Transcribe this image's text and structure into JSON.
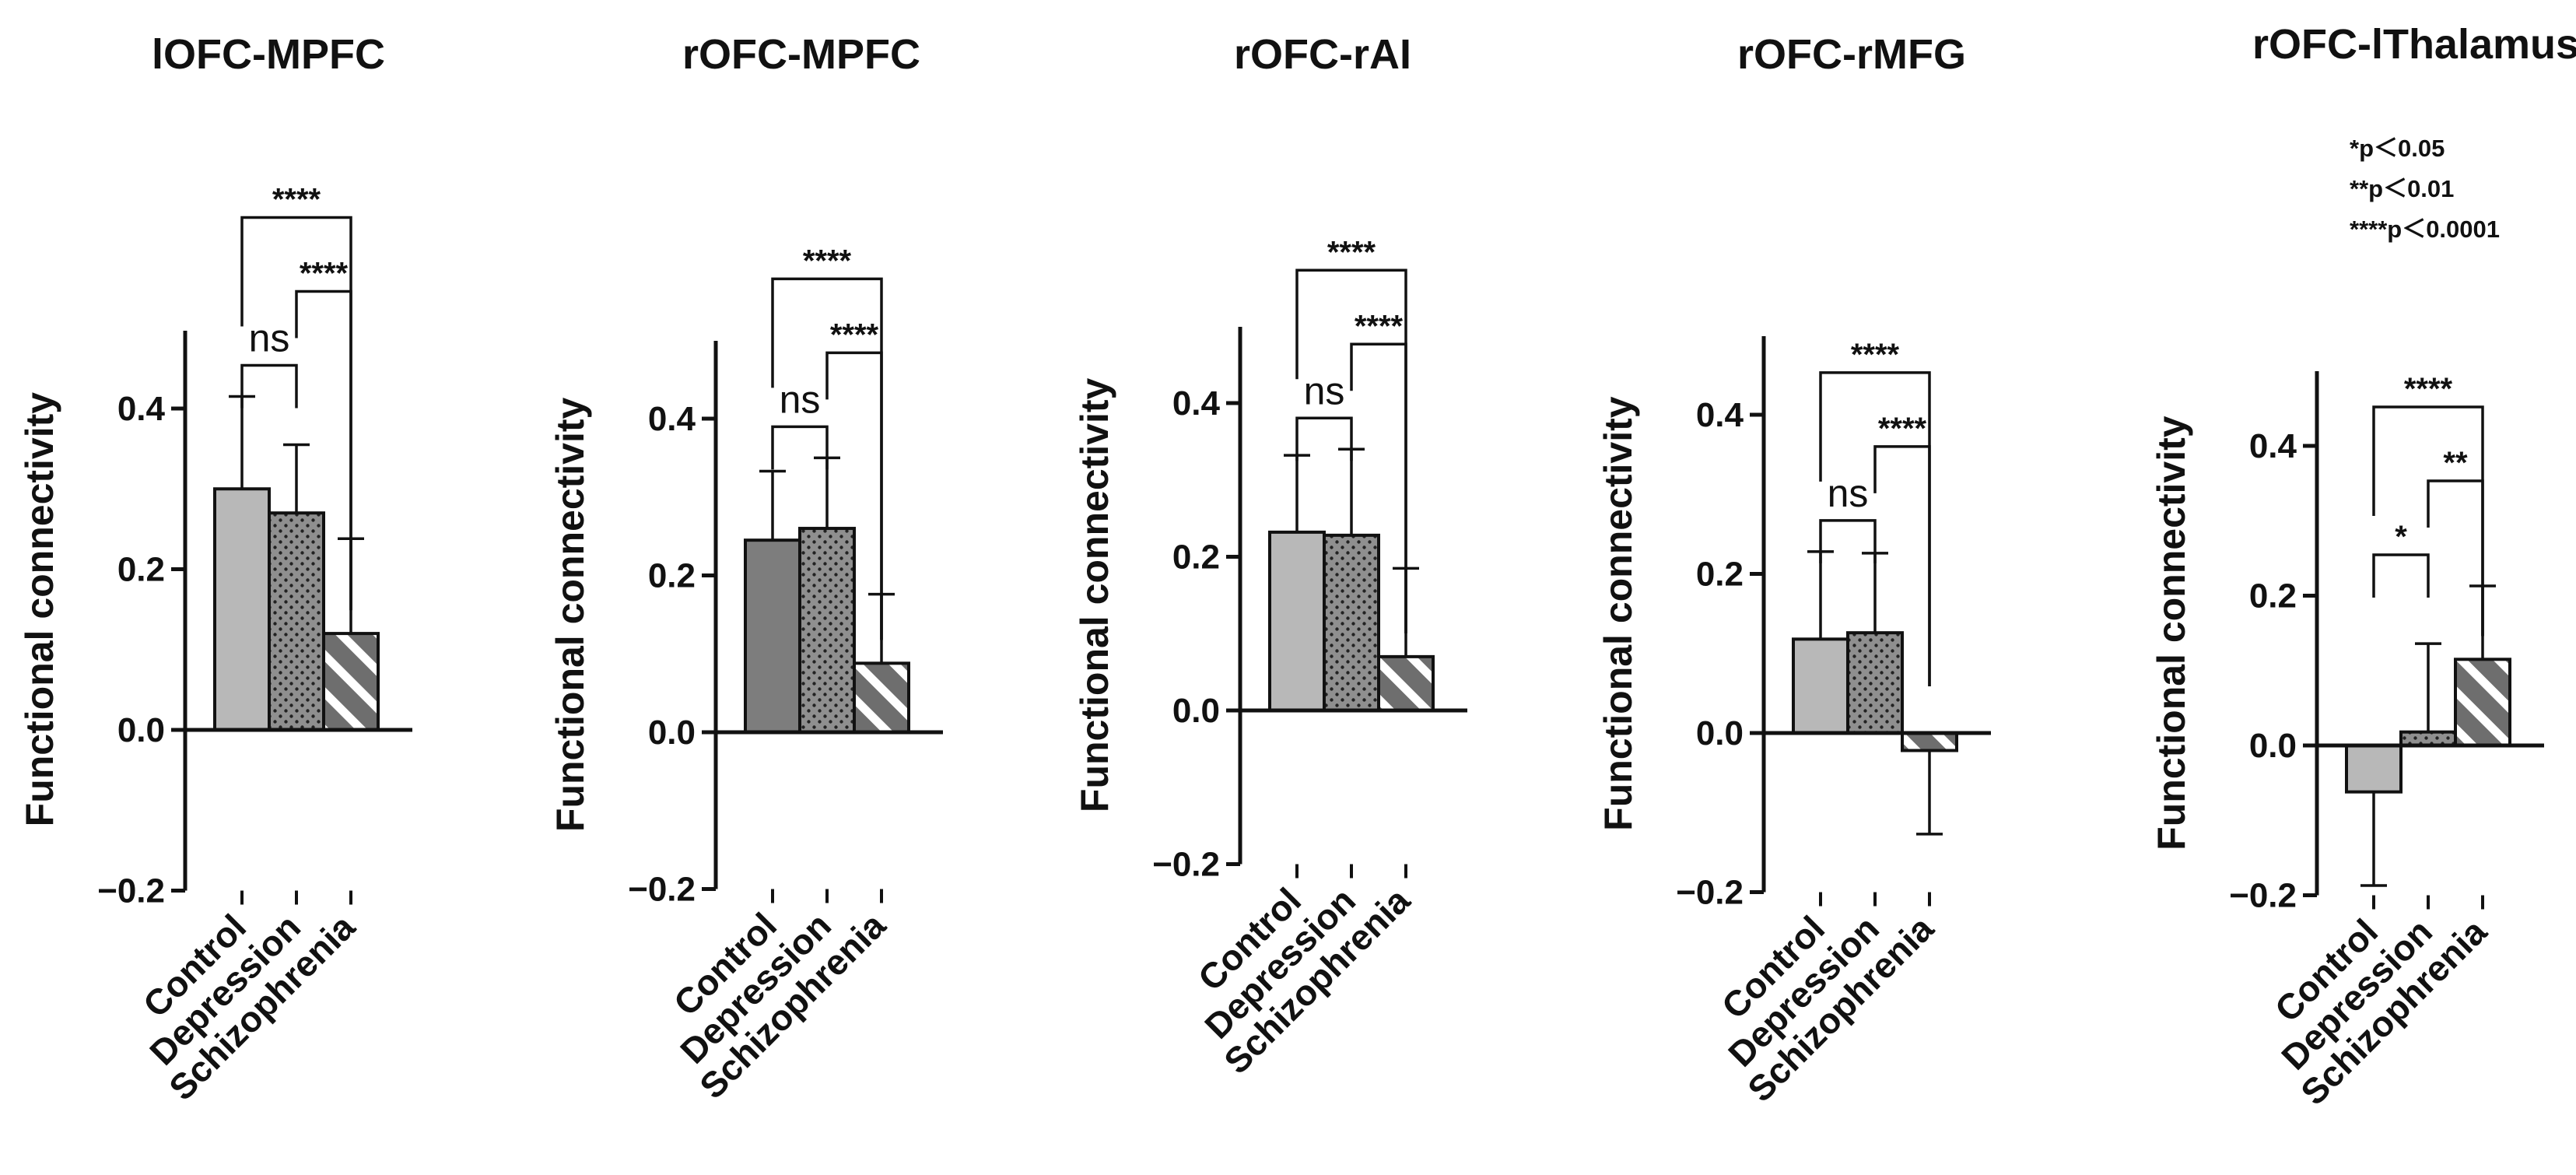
{
  "ylabel": "Functional connectivity",
  "groups": [
    "Control",
    "Depression",
    "Schizophrenia"
  ],
  "significance_legend": [
    "*p＜0.05",
    "**p＜0.01",
    "****p＜0.0001"
  ],
  "colors": {
    "control_fill": "#b8b8b8",
    "control_fill_alt": "#7d7d7d",
    "depression_fill": "#8f8f8f",
    "schizophrenia_fill": "#6e6e6e",
    "stroke": "#111111"
  },
  "chart_data": [
    {
      "type": "bar",
      "title": "lOFC-MPFC",
      "categories": [
        "Control",
        "Depression",
        "Schizophrenia"
      ],
      "values": [
        0.3,
        0.27,
        0.12
      ],
      "errors": [
        0.115,
        0.085,
        0.118
      ],
      "ylim": [
        -0.2,
        0.5
      ],
      "yticks": [
        -0.2,
        0.0,
        0.2,
        0.4
      ],
      "tick_labels": [
        "−0.2",
        "0.0",
        "0.2",
        "0.4"
      ],
      "comparisons": [
        {
          "from": 0,
          "to": 1,
          "label": "ns",
          "level": 1
        },
        {
          "from": 1,
          "to": 2,
          "label": "****",
          "level": 2
        },
        {
          "from": 0,
          "to": 2,
          "label": "****",
          "level": 3
        }
      ]
    },
    {
      "type": "bar",
      "title": "rOFC-MPFC",
      "categories": [
        "Control",
        "Depression",
        "Schizophrenia"
      ],
      "values": [
        0.245,
        0.26,
        0.088
      ],
      "errors": [
        0.088,
        0.09,
        0.088
      ],
      "ylim": [
        -0.2,
        0.5
      ],
      "yticks": [
        -0.2,
        0.0,
        0.2,
        0.4
      ],
      "tick_labels": [
        "−0.2",
        "0.0",
        "0.2",
        "0.4"
      ],
      "control_dark": true,
      "comparisons": [
        {
          "from": 0,
          "to": 1,
          "label": "ns",
          "level": 1
        },
        {
          "from": 1,
          "to": 2,
          "label": "****",
          "level": 2
        },
        {
          "from": 0,
          "to": 2,
          "label": "****",
          "level": 3
        }
      ]
    },
    {
      "type": "bar",
      "title": "rOFC-rAI",
      "categories": [
        "Control",
        "Depression",
        "Schizophrenia"
      ],
      "values": [
        0.232,
        0.228,
        0.07
      ],
      "errors": [
        0.1,
        0.112,
        0.115
      ],
      "ylim": [
        -0.2,
        0.5
      ],
      "yticks": [
        -0.2,
        0.0,
        0.2,
        0.4
      ],
      "tick_labels": [
        "−0.2",
        "0.0",
        "0.2",
        "0.4"
      ],
      "comparisons": [
        {
          "from": 0,
          "to": 1,
          "label": "ns",
          "level": 1
        },
        {
          "from": 1,
          "to": 2,
          "label": "****",
          "level": 2
        },
        {
          "from": 0,
          "to": 2,
          "label": "****",
          "level": 3
        }
      ]
    },
    {
      "type": "bar",
      "title": "rOFC-rMFG",
      "categories": [
        "Control",
        "Depression",
        "Schizophrenia"
      ],
      "values": [
        0.118,
        0.126,
        -0.022
      ],
      "errors": [
        0.11,
        0.1,
        0.105
      ],
      "ylim": [
        -0.2,
        0.5
      ],
      "yticks": [
        -0.2,
        0.0,
        0.2,
        0.4
      ],
      "tick_labels": [
        "−0.2",
        "0.0",
        "0.2",
        "0.4"
      ],
      "comparisons": [
        {
          "from": 0,
          "to": 1,
          "label": "ns",
          "level": 1
        },
        {
          "from": 1,
          "to": 2,
          "label": "****",
          "level": 2
        },
        {
          "from": 0,
          "to": 2,
          "label": "****",
          "level": 3
        }
      ]
    },
    {
      "type": "bar",
      "title": "rOFC-lThalamus",
      "categories": [
        "Control",
        "Depression",
        "Schizophrenia"
      ],
      "values": [
        -0.062,
        0.018,
        0.115
      ],
      "errors": [
        0.125,
        0.118,
        0.098
      ],
      "ylim": [
        -0.2,
        0.5
      ],
      "yticks": [
        -0.2,
        0.0,
        0.2,
        0.4
      ],
      "tick_labels": [
        "−0.2",
        "0.0",
        "0.2",
        "0.4"
      ],
      "comparisons": [
        {
          "from": 0,
          "to": 1,
          "label": "*",
          "level": 1
        },
        {
          "from": 1,
          "to": 2,
          "label": "**",
          "level": 2
        },
        {
          "from": 0,
          "to": 2,
          "label": "****",
          "level": 3
        }
      ]
    }
  ]
}
